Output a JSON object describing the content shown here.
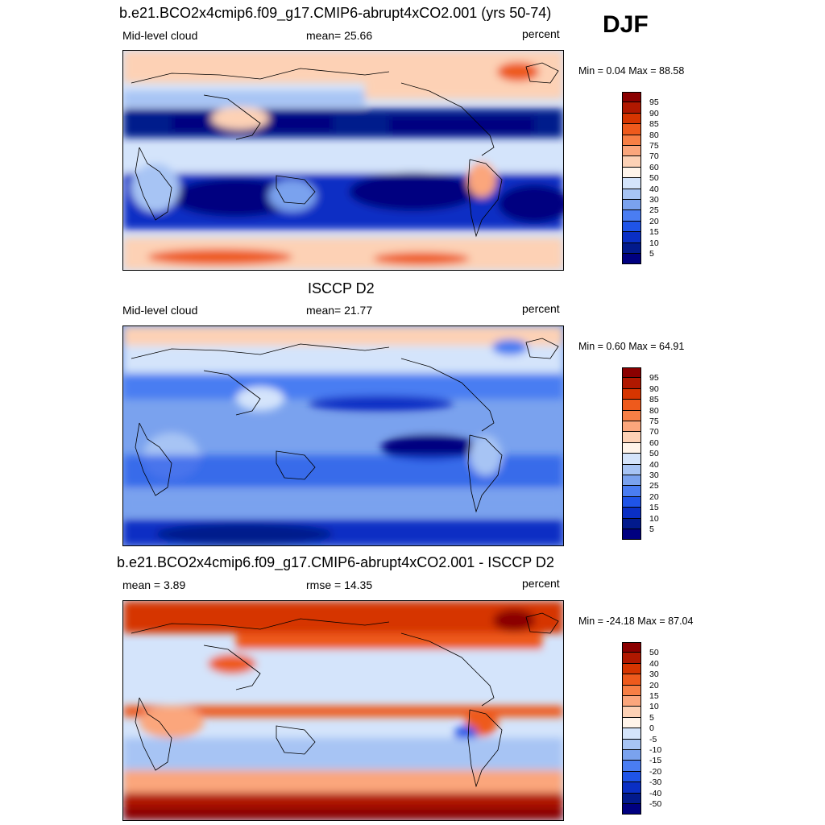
{
  "season": "DJF",
  "panels": [
    {
      "title": "b.e21.BCO2x4cmip6.f09_g17.CMIP6-abrupt4xCO2.001 (yrs 50-74)",
      "left_label": "Mid-level cloud",
      "center_label": "mean=  25.66",
      "right_label": "percent",
      "minmax": "Min =   0.04 Max =  88.58",
      "colorbar": {
        "labels": [
          "95",
          "90",
          "85",
          "80",
          "75",
          "70",
          "60",
          "50",
          "40",
          "30",
          "25",
          "20",
          "15",
          "10",
          "5"
        ],
        "colors": [
          "#8b0000",
          "#b01800",
          "#d63500",
          "#ee5a1c",
          "#f77f45",
          "#fba67c",
          "#fdd1b5",
          "#fff4ea",
          "#d4e4fb",
          "#a7c4f4",
          "#7aa2ee",
          "#4a7df2",
          "#1f54e8",
          "#0a2fc4",
          "#021a8c",
          "#000080"
        ]
      },
      "palette_type": "cloud"
    },
    {
      "title": "ISCCP D2",
      "left_label": "Mid-level cloud",
      "center_label": "mean=  21.77",
      "right_label": "percent",
      "minmax": "Min =   0.60 Max =  64.91",
      "colorbar": {
        "labels": [
          "95",
          "90",
          "85",
          "80",
          "75",
          "70",
          "60",
          "50",
          "40",
          "30",
          "25",
          "20",
          "15",
          "10",
          "5"
        ],
        "colors": [
          "#8b0000",
          "#b01800",
          "#d63500",
          "#ee5a1c",
          "#f77f45",
          "#fba67c",
          "#fdd1b5",
          "#fff4ea",
          "#d4e4fb",
          "#a7c4f4",
          "#7aa2ee",
          "#4a7df2",
          "#1f54e8",
          "#0a2fc4",
          "#021a8c",
          "#000080"
        ]
      },
      "palette_type": "cloud"
    },
    {
      "title": "b.e21.BCO2x4cmip6.f09_g17.CMIP6-abrupt4xCO2.001 - ISCCP D2",
      "left_label": "mean =   3.89",
      "center_label": "rmse =  14.35",
      "right_label": "percent",
      "minmax": "Min = -24.18 Max =  87.04",
      "colorbar": {
        "labels": [
          "50",
          "40",
          "30",
          "20",
          "15",
          "10",
          "5",
          "0",
          "-5",
          "-10",
          "-15",
          "-20",
          "-30",
          "-40",
          "-50"
        ],
        "colors": [
          "#8b0000",
          "#b01800",
          "#d63500",
          "#ee5a1c",
          "#f77f45",
          "#fba67c",
          "#fdd1b5",
          "#fff4ea",
          "#d4e4fb",
          "#a7c4f4",
          "#7aa2ee",
          "#4a7df2",
          "#1f54e8",
          "#0a2fc4",
          "#021a8c",
          "#000080"
        ]
      },
      "palette_type": "diff"
    }
  ]
}
